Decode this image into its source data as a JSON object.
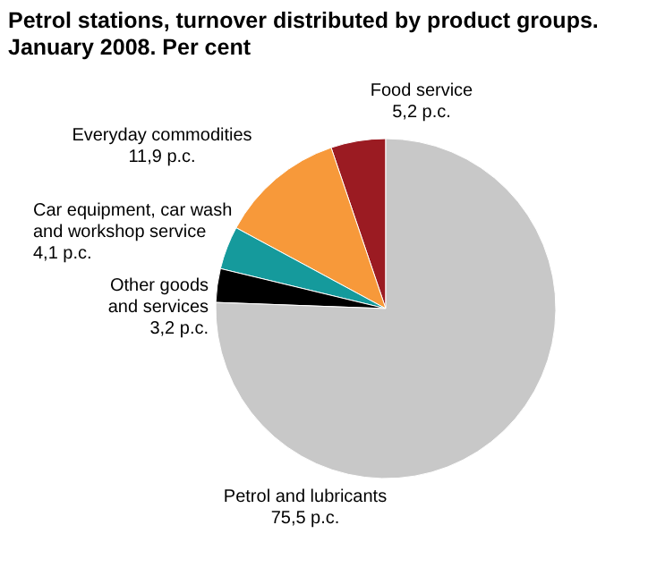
{
  "chart_data": {
    "type": "pie",
    "title": "Petrol stations, turnover distributed by product groups.\nJanuary 2008. Per cent",
    "categories": [
      "Food service",
      "Everyday commodities",
      "Car equipment, car wash\nand workshop service",
      "Other goods\nand services",
      "Petrol and lubricants"
    ],
    "values": [
      5.2,
      11.9,
      4.1,
      3.2,
      75.5
    ],
    "value_labels": [
      "5,2 p.c.",
      "11,9 p.c.",
      "4,1 p.c.",
      "3,2 p.c.",
      "75,5 p.c."
    ],
    "colors": [
      "#9b1b22",
      "#f7993a",
      "#159a9c",
      "#000000",
      "#c8c8c8"
    ]
  }
}
